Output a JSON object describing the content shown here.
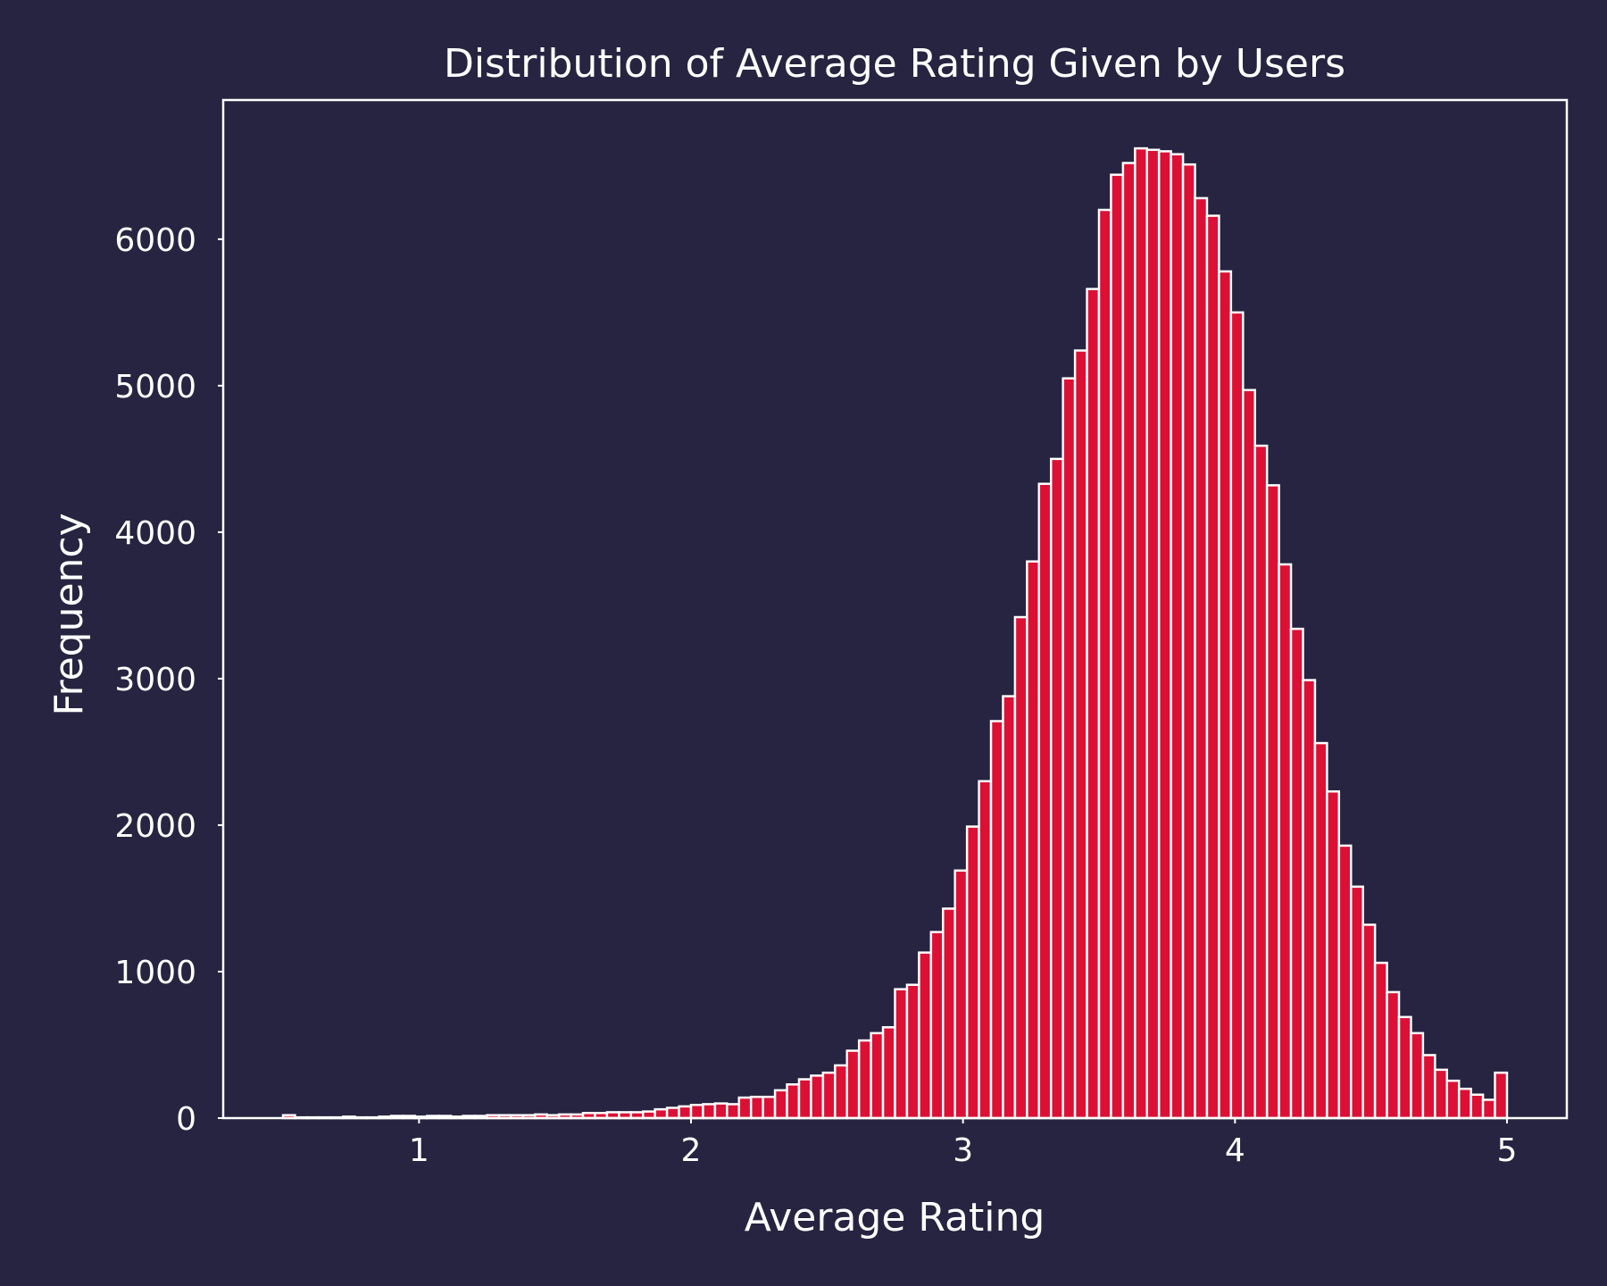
{
  "chart_data": {
    "type": "bar",
    "title": "Distribution of Average Rating Given by Users",
    "xlabel": "Average Rating",
    "ylabel": "Frequency",
    "xlim": [
      0.28,
      5.22
    ],
    "ylim": [
      0,
      6950
    ],
    "x_ticks": [
      1,
      2,
      3,
      4,
      5
    ],
    "y_ticks": [
      0,
      1000,
      2000,
      3000,
      4000,
      5000,
      6000
    ],
    "grid": false,
    "legend": "none",
    "bin_start": 0.5,
    "bin_end": 5.0,
    "values": [
      20,
      5,
      5,
      5,
      5,
      10,
      5,
      5,
      10,
      15,
      15,
      10,
      15,
      15,
      10,
      15,
      15,
      20,
      20,
      20,
      20,
      25,
      20,
      25,
      25,
      35,
      35,
      40,
      40,
      40,
      45,
      60,
      70,
      80,
      90,
      95,
      100,
      95,
      140,
      145,
      145,
      190,
      230,
      265,
      290,
      310,
      360,
      460,
      530,
      580,
      620,
      880,
      910,
      1130,
      1270,
      1430,
      1690,
      1990,
      2300,
      2710,
      2880,
      3420,
      3800,
      4330,
      4500,
      5050,
      5240,
      5660,
      6200,
      6440,
      6520,
      6620,
      6610,
      6600,
      6580,
      6510,
      6280,
      6160,
      5780,
      5500,
      4970,
      4590,
      4320,
      3780,
      3340,
      2990,
      2560,
      2230,
      1860,
      1580,
      1320,
      1060,
      860,
      690,
      580,
      430,
      330,
      255,
      200,
      160,
      125,
      310
    ],
    "colors": {
      "background": "#262440",
      "bar_fill": "#dc1035",
      "bar_edge": "#ffffff",
      "axes": "#ffffff",
      "text": "#ffffff"
    }
  }
}
